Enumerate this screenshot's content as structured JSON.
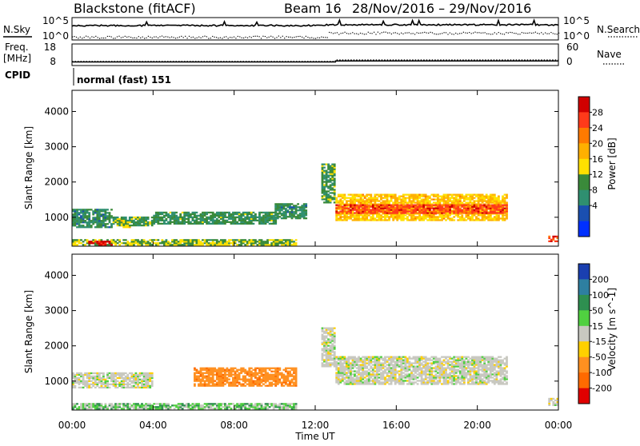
{
  "header": {
    "radar": "Blackstone (fitACF)",
    "beam": "Beam 16",
    "dates": "28/Nov/2016 – 29/Nov/2016"
  },
  "summary_panels": {
    "nsky_label": "N.Sky",
    "nsearch_label": "N.Search",
    "nsky_ticks": [
      "10^5",
      "10^0"
    ],
    "freq_label": "Freq.",
    "freq_unit": "[MHz]",
    "freq_ticks": [
      "18",
      "8"
    ],
    "nave_label": "Nave",
    "nave_ticks": [
      "60",
      "0"
    ],
    "cpid_label": "CPID",
    "cpid_value": "normal (fast) 151",
    "freq_before": 10.5,
    "freq_after": 11.2,
    "freq_step_hour": 13.0,
    "nave_before": 14,
    "nave_after": 20
  },
  "x_axis": {
    "label": "Time UT",
    "range_hours": [
      0,
      24
    ],
    "ticks": [
      {
        "h": 0,
        "label": "00:00"
      },
      {
        "h": 4,
        "label": "04:00"
      },
      {
        "h": 8,
        "label": "08:00"
      },
      {
        "h": 12,
        "label": "12:00"
      },
      {
        "h": 16,
        "label": "16:00"
      },
      {
        "h": 20,
        "label": "20:00"
      },
      {
        "h": 24,
        "label": "00:00"
      }
    ]
  },
  "y_axis": {
    "label": "Slant Range [km]",
    "range_km": [
      180,
      4600
    ],
    "ticks": [
      "1000",
      "2000",
      "3000",
      "4000"
    ],
    "tick_values": [
      1000,
      2000,
      3000,
      4000
    ]
  },
  "power_scale": {
    "label": "Power [dB]",
    "ticks": [
      "28",
      "24",
      "20",
      "16",
      "12",
      "8",
      "4"
    ],
    "colors": [
      "#d00000",
      "#ff3a1a",
      "#ff7a00",
      "#ffb000",
      "#ffe000",
      "#3a8a3a",
      "#2f8f70",
      "#1a4fb0",
      "#0030ff"
    ]
  },
  "velocity_scale": {
    "label": "Velocity [m s^-1]",
    "ticks": [
      "200",
      "100",
      "50",
      "15",
      "-15",
      "-50",
      "-100",
      "-200"
    ],
    "colors": [
      "#1a3fb0",
      "#2e7fa0",
      "#2e8f50",
      "#50d040",
      "#c8c8c0",
      "#ffd000",
      "#ff9020",
      "#ff6a00",
      "#e00000"
    ]
  },
  "chart_data": {
    "type": "heatmap",
    "panels": [
      {
        "name": "Power",
        "unit": "dB",
        "regions": [
          {
            "t": [
              0.0,
              2.0
            ],
            "r": [
              700,
              1200
            ],
            "level": 8
          },
          {
            "t": [
              2.0,
              4.0
            ],
            "r": [
              750,
              1000
            ],
            "level": 10
          },
          {
            "t": [
              2.4,
              2.9
            ],
            "r": [
              700,
              900
            ],
            "level": 14
          },
          {
            "t": [
              4.0,
              10.0
            ],
            "r": [
              800,
              1150
            ],
            "level": 9
          },
          {
            "t": [
              10.0,
              11.5
            ],
            "r": [
              950,
              1400
            ],
            "level": 8
          },
          {
            "t": [
              0.0,
              11.0
            ],
            "r": [
              200,
              380
            ],
            "level": 12
          },
          {
            "t": [
              0.8,
              2.0
            ],
            "r": [
              200,
              300
            ],
            "level": 28
          },
          {
            "t": [
              12.3,
              12.9
            ],
            "r": [
              1400,
              2500
            ],
            "level": 10
          },
          {
            "t": [
              13.0,
              21.5
            ],
            "r": [
              900,
              1650
            ],
            "level": 16
          },
          {
            "t": [
              13.0,
              21.5
            ],
            "r": [
              1100,
              1350
            ],
            "level": 24
          },
          {
            "t": [
              23.5,
              24.0
            ],
            "r": [
              300,
              450
            ],
            "level": 24
          }
        ]
      },
      {
        "name": "Velocity",
        "unit": "m s^-1",
        "regions": [
          {
            "t": [
              0.0,
              4.0
            ],
            "r": [
              800,
              1250
            ],
            "value": 0
          },
          {
            "t": [
              6.0,
              11.0
            ],
            "r": [
              850,
              1350
            ],
            "value": -60
          },
          {
            "t": [
              0.0,
              11.0
            ],
            "r": [
              200,
              380
            ],
            "value": 20
          },
          {
            "t": [
              12.3,
              12.9
            ],
            "r": [
              1400,
              2500
            ],
            "value": 0
          },
          {
            "t": [
              13.0,
              21.5
            ],
            "r": [
              900,
              1700
            ],
            "value": 0
          },
          {
            "t": [
              23.5,
              24.0
            ],
            "r": [
              300,
              500
            ],
            "value": 0
          }
        ]
      }
    ]
  }
}
